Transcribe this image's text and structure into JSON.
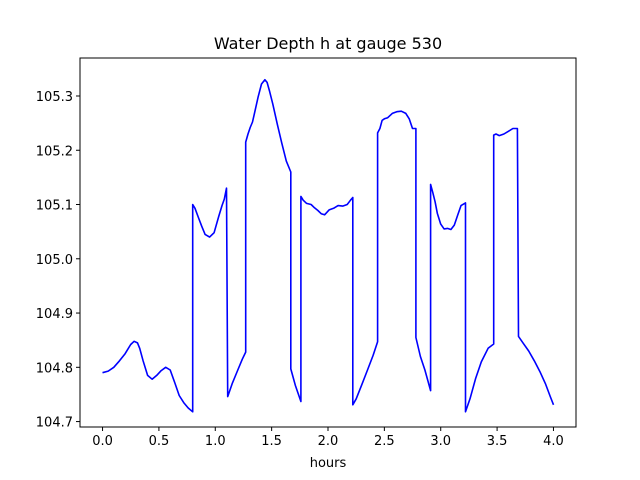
{
  "chart_data": {
    "type": "line",
    "title": "Water Depth h at gauge 530",
    "xlabel": "hours",
    "ylabel": "",
    "xlim": [
      -0.2,
      4.2
    ],
    "ylim": [
      104.69,
      105.37
    ],
    "xticks": [
      0.0,
      0.5,
      1.0,
      1.5,
      2.0,
      2.5,
      3.0,
      3.5,
      4.0
    ],
    "xtick_labels": [
      "0.0",
      "0.5",
      "1.0",
      "1.5",
      "2.0",
      "2.5",
      "3.0",
      "3.5",
      "4.0"
    ],
    "yticks": [
      104.7,
      104.8,
      104.9,
      105.0,
      105.1,
      105.2,
      105.3
    ],
    "ytick_labels": [
      "104.7",
      "104.8",
      "104.9",
      "105.0",
      "105.1",
      "105.2",
      "105.3"
    ],
    "grid": false,
    "series": [
      {
        "color": "#0000ff",
        "x": [
          0.0,
          0.05,
          0.1,
          0.15,
          0.2,
          0.25,
          0.28,
          0.31,
          0.33,
          0.36,
          0.4,
          0.44,
          0.48,
          0.52,
          0.56,
          0.6,
          0.64,
          0.68,
          0.72,
          0.76,
          0.8,
          0.8,
          0.82,
          0.85,
          0.88,
          0.91,
          0.95,
          0.99,
          1.03,
          1.06,
          1.08,
          1.1,
          1.11,
          1.15,
          1.2,
          1.24,
          1.27,
          1.27,
          1.29,
          1.31,
          1.33,
          1.35,
          1.38,
          1.41,
          1.44,
          1.46,
          1.48,
          1.51,
          1.55,
          1.59,
          1.63,
          1.67,
          1.67,
          1.71,
          1.76,
          1.76,
          1.78,
          1.81,
          1.85,
          1.88,
          1.91,
          1.94,
          1.97,
          2.01,
          2.05,
          2.09,
          2.13,
          2.17,
          2.2,
          2.22,
          2.22,
          2.25,
          2.3,
          2.35,
          2.4,
          2.44,
          2.44,
          2.46,
          2.48,
          2.5,
          2.53,
          2.57,
          2.61,
          2.65,
          2.69,
          2.72,
          2.75,
          2.78,
          2.78,
          2.82,
          2.86,
          2.91,
          2.91,
          2.93,
          2.95,
          2.97,
          3.0,
          3.03,
          3.06,
          3.09,
          3.12,
          3.15,
          3.18,
          3.22,
          3.22,
          3.26,
          3.31,
          3.36,
          3.42,
          3.47,
          3.47,
          3.49,
          3.52,
          3.56,
          3.6,
          3.64,
          3.68,
          3.69,
          3.73,
          3.78,
          3.83,
          3.88,
          3.93,
          3.97,
          4.0
        ],
        "y": [
          104.79,
          104.793,
          104.8,
          104.812,
          104.825,
          104.842,
          104.848,
          104.845,
          104.835,
          104.812,
          104.785,
          104.778,
          104.785,
          104.794,
          104.8,
          104.795,
          104.772,
          104.748,
          104.735,
          104.725,
          104.718,
          105.1,
          105.093,
          105.076,
          105.06,
          105.045,
          105.04,
          105.048,
          105.078,
          105.098,
          105.11,
          105.13,
          104.746,
          104.77,
          104.795,
          104.815,
          104.828,
          105.215,
          105.23,
          105.242,
          105.252,
          105.27,
          105.298,
          105.322,
          105.33,
          105.325,
          105.31,
          105.285,
          105.248,
          105.213,
          105.18,
          105.16,
          104.797,
          104.767,
          104.737,
          105.115,
          105.108,
          105.102,
          105.1,
          105.094,
          105.089,
          105.083,
          105.081,
          105.09,
          105.093,
          105.098,
          105.097,
          105.1,
          105.108,
          105.113,
          104.731,
          104.742,
          104.768,
          104.795,
          104.822,
          104.847,
          105.232,
          105.24,
          105.255,
          105.258,
          105.26,
          105.268,
          105.271,
          105.272,
          105.268,
          105.258,
          105.24,
          105.24,
          104.855,
          104.82,
          104.795,
          104.757,
          105.137,
          105.122,
          105.105,
          105.084,
          105.064,
          105.055,
          105.056,
          105.054,
          105.062,
          105.08,
          105.098,
          105.103,
          104.718,
          104.742,
          104.78,
          104.81,
          104.835,
          104.843,
          105.228,
          105.23,
          105.227,
          105.23,
          105.235,
          105.24,
          105.24,
          104.857,
          104.845,
          104.83,
          104.812,
          104.792,
          104.769,
          104.747,
          104.731
        ]
      }
    ]
  }
}
